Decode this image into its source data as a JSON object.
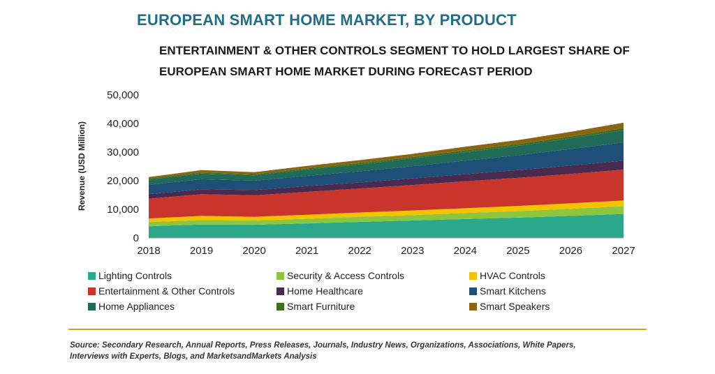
{
  "header": {
    "title": "EUROPEAN SMART HOME MARKET, BY PRODUCT",
    "subtitle_line1": "ENTERTAINMENT & OTHER CONTROLS SEGMENT TO HOLD LARGEST SHARE OF",
    "subtitle_line2": "EUROPEAN SMART HOME MARKET DURING FORECAST PERIOD"
  },
  "chart_data": {
    "type": "area",
    "stacked": true,
    "x": [
      "2018",
      "2019",
      "2020",
      "2021",
      "2022",
      "2023",
      "2024",
      "2025",
      "2026",
      "2027"
    ],
    "ylabel": "Revenue (USD Million)",
    "ylim": [
      0,
      50000
    ],
    "yticks": [
      "0",
      "10,000",
      "20,000",
      "30,000",
      "40,000",
      "50,000"
    ],
    "grid": false,
    "legend_position": "bottom",
    "series": [
      {
        "name": "Lighting Controls",
        "color": "#2aa889",
        "values": [
          4100,
          4700,
          4600,
          5100,
          5600,
          6100,
          6600,
          7100,
          7700,
          8400
        ]
      },
      {
        "name": "Security & Access Controls",
        "color": "#8cc63f",
        "values": [
          1400,
          1600,
          1500,
          1600,
          1800,
          1900,
          2100,
          2300,
          2500,
          2700
        ]
      },
      {
        "name": "HVAC Controls",
        "color": "#f5c200",
        "values": [
          1300,
          1400,
          1300,
          1400,
          1500,
          1600,
          1700,
          1800,
          1900,
          2000
        ]
      },
      {
        "name": "Entertainment & Other Controls",
        "color": "#c9342b",
        "values": [
          6900,
          7600,
          7500,
          8000,
          8400,
          8900,
          9400,
          9800,
          10300,
          10800
        ]
      },
      {
        "name": "Home Healthcare",
        "color": "#4a2a4f",
        "values": [
          1600,
          1700,
          1800,
          2000,
          2100,
          2300,
          2500,
          2700,
          2900,
          3100
        ]
      },
      {
        "name": "Smart Kitchens",
        "color": "#1f4e79",
        "values": [
          3300,
          3500,
          3300,
          3600,
          3900,
          4300,
          4700,
          5200,
          5800,
          6400
        ]
      },
      {
        "name": "Home Appliances",
        "color": "#1f6b57",
        "values": [
          1800,
          2000,
          1900,
          2200,
          2400,
          2700,
          3000,
          3300,
          3700,
          4200
        ]
      },
      {
        "name": "Smart Furniture",
        "color": "#3f6e1e",
        "values": [
          400,
          400,
          400,
          400,
          500,
          500,
          600,
          600,
          700,
          800
        ]
      },
      {
        "name": "Smart Speakers",
        "color": "#8b6514",
        "values": [
          500,
          800,
          700,
          900,
          1000,
          1100,
          1300,
          1400,
          1600,
          1900
        ]
      }
    ]
  },
  "footer": {
    "source_line1": "Source: Secondary Research, Annual Reports, Press Releases, Journals, Industry News, Organizations, Associations, White Papers,",
    "source_line2": "Interviews with Experts, Blogs, and MarketsandMarkets Analysis"
  }
}
